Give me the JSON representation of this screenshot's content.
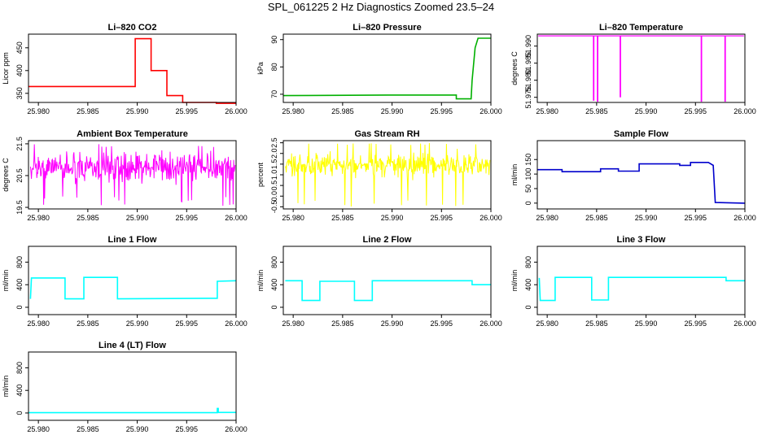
{
  "figure": {
    "title": "SPL_061225  2 Hz Diagnostics Zoomed 23.5–24"
  },
  "chart_data": [
    {
      "type": "line",
      "title": "Li–820 CO2",
      "ylabel": "Licor ppm",
      "color": "#ff0000",
      "xlim": [
        25.979,
        26.0
      ],
      "ylim": [
        330,
        480
      ],
      "x_ticks": [
        "25.980",
        "25.985",
        "25.990",
        "25.995",
        "26.000"
      ],
      "y_ticks": [
        "350",
        "400",
        "450"
      ],
      "x": [
        25.979,
        25.9898,
        25.9898,
        25.9914,
        25.9914,
        25.993,
        25.993,
        25.9946,
        25.9946,
        25.996,
        25.9966,
        25.998,
        25.998,
        26.0
      ],
      "y": [
        365,
        365,
        470,
        470,
        400,
        400,
        345,
        345,
        330,
        330,
        330,
        330,
        328,
        328
      ]
    },
    {
      "type": "line",
      "title": "Li–820 Pressure",
      "ylabel": "kPa",
      "color": "#00b000",
      "xlim": [
        25.979,
        26.0
      ],
      "ylim": [
        67,
        92
      ],
      "x_ticks": [
        "25.980",
        "25.985",
        "25.990",
        "25.995",
        "26.000"
      ],
      "y_ticks": [
        "70",
        "80",
        "90"
      ],
      "x": [
        25.979,
        25.9895,
        25.9965,
        25.9965,
        25.998,
        25.9981,
        25.9984,
        25.9987,
        26.0
      ],
      "y": [
        69.5,
        69.7,
        69.7,
        68.3,
        68.3,
        75,
        87,
        90.5,
        90.5
      ]
    },
    {
      "type": "line",
      "title": "Li–820 Temperature",
      "ylabel": "degrees C",
      "color": "#ff00ff",
      "xlim": [
        25.979,
        26.0
      ],
      "ylim": [
        51.9735,
        51.9935
      ],
      "x_ticks": [
        "25.980",
        "25.985",
        "25.990",
        "25.995",
        "26.000"
      ],
      "y_ticks": [
        "51.975",
        "51.980",
        "51.985",
        "51.990"
      ],
      "baseline": 51.993,
      "dips": [
        {
          "x": 25.9847,
          "y": 51.974
        },
        {
          "x": 25.9851,
          "y": 51.9737
        },
        {
          "x": 25.9874,
          "y": 51.975
        },
        {
          "x": 25.9956,
          "y": 51.9737
        },
        {
          "x": 25.998,
          "y": 51.9737
        }
      ]
    },
    {
      "type": "line",
      "title": "Ambient Box Temperature",
      "ylabel": "degrees C",
      "color": "#ff00ff",
      "xlim": [
        25.979,
        26.0
      ],
      "ylim": [
        19.45,
        21.6
      ],
      "x_ticks": [
        "25.980",
        "25.985",
        "25.990",
        "25.995",
        "26.000"
      ],
      "y_ticks": [
        "19.5",
        "20.5",
        "21.5"
      ],
      "noise": {
        "center": 20.75,
        "spread": 0.35,
        "min": 19.55,
        "max": 21.5
      }
    },
    {
      "type": "line",
      "title": "Gas Stream RH",
      "ylabel": "percent",
      "color": "#ffff00",
      "xlim": [
        25.979,
        26.0
      ],
      "ylim": [
        -0.6,
        2.6
      ],
      "x_ticks": [
        "25.980",
        "25.985",
        "25.990",
        "25.995",
        "26.000"
      ],
      "y_ticks": [
        "-0.5",
        "0.0",
        "0.5",
        "1.0",
        "1.5",
        "2.0",
        "2.5"
      ],
      "noise": {
        "center": 1.45,
        "spread": 0.45,
        "min": -0.5,
        "max": 2.5
      }
    },
    {
      "type": "line",
      "title": "Sample Flow",
      "ylabel": "ml/min",
      "color": "#0000cc",
      "xlim": [
        25.979,
        26.0
      ],
      "ylim": [
        -20,
        215
      ],
      "x_ticks": [
        "25.980",
        "25.985",
        "25.990",
        "25.995",
        "26.000"
      ],
      "y_ticks": [
        "0",
        "50",
        "100",
        "150"
      ],
      "x": [
        25.979,
        25.9815,
        25.9815,
        25.9854,
        25.9854,
        25.9872,
        25.9872,
        25.9893,
        25.9893,
        25.9934,
        25.9934,
        25.9945,
        25.9945,
        25.9963,
        25.9968,
        25.997,
        26.0
      ],
      "y": [
        115,
        115,
        108,
        108,
        118,
        118,
        110,
        110,
        135,
        135,
        130,
        130,
        140,
        140,
        130,
        2,
        0
      ]
    },
    {
      "type": "line",
      "title": "Line 1 Flow",
      "ylabel": "ml/min",
      "color": "#00ffff",
      "xlim": [
        25.979,
        26.0
      ],
      "ylim": [
        -130,
        1080
      ],
      "x_ticks": [
        "25.980",
        "25.985",
        "25.990",
        "25.995",
        "26.000"
      ],
      "y_ticks": [
        "0",
        "400",
        "800"
      ],
      "x": [
        25.9792,
        25.9793,
        25.9827,
        25.9827,
        25.9846,
        25.9846,
        25.988,
        25.988,
        25.9981,
        25.9981,
        26.0
      ],
      "y": [
        150,
        520,
        520,
        150,
        150,
        530,
        530,
        150,
        160,
        460,
        470
      ]
    },
    {
      "type": "line",
      "title": "Line 2 Flow",
      "ylabel": "ml/min",
      "color": "#00ffff",
      "xlim": [
        25.979,
        26.0
      ],
      "ylim": [
        -130,
        1080
      ],
      "x_ticks": [
        "25.980",
        "25.985",
        "25.990",
        "25.995",
        "26.000"
      ],
      "y_ticks": [
        "0",
        "400",
        "800"
      ],
      "x": [
        25.9792,
        25.9809,
        25.9809,
        25.9827,
        25.9827,
        25.9862,
        25.9862,
        25.988,
        25.988,
        25.9981,
        25.9981,
        26.0
      ],
      "y": [
        470,
        470,
        120,
        120,
        460,
        460,
        120,
        120,
        470,
        470,
        400,
        400
      ]
    },
    {
      "type": "line",
      "title": "Line 3 Flow",
      "ylabel": "ml/min",
      "color": "#00ffff",
      "xlim": [
        25.979,
        26.0
      ],
      "ylim": [
        -130,
        1080
      ],
      "x_ticks": [
        "25.980",
        "25.985",
        "25.990",
        "25.995",
        "26.000"
      ],
      "y_ticks": [
        "0",
        "400",
        "800"
      ],
      "x": [
        25.9792,
        25.9793,
        25.9808,
        25.9808,
        25.9845,
        25.9845,
        25.9862,
        25.9862,
        25.9981,
        25.9981,
        26.0
      ],
      "y": [
        520,
        120,
        120,
        530,
        530,
        130,
        130,
        530,
        530,
        470,
        470
      ]
    },
    {
      "type": "line",
      "title": "Line 4 (LT) Flow",
      "ylabel": "ml/min",
      "color": "#00ffff",
      "xlim": [
        25.979,
        26.0
      ],
      "ylim": [
        -130,
        1080
      ],
      "x_ticks": [
        "25.980",
        "25.985",
        "25.990",
        "25.995",
        "26.000"
      ],
      "y_ticks": [
        "0",
        "400",
        "800"
      ],
      "x": [
        25.979,
        25.9981,
        25.9981,
        25.9982,
        25.9982,
        26.0
      ],
      "y": [
        5,
        5,
        80,
        80,
        10,
        10
      ]
    }
  ]
}
